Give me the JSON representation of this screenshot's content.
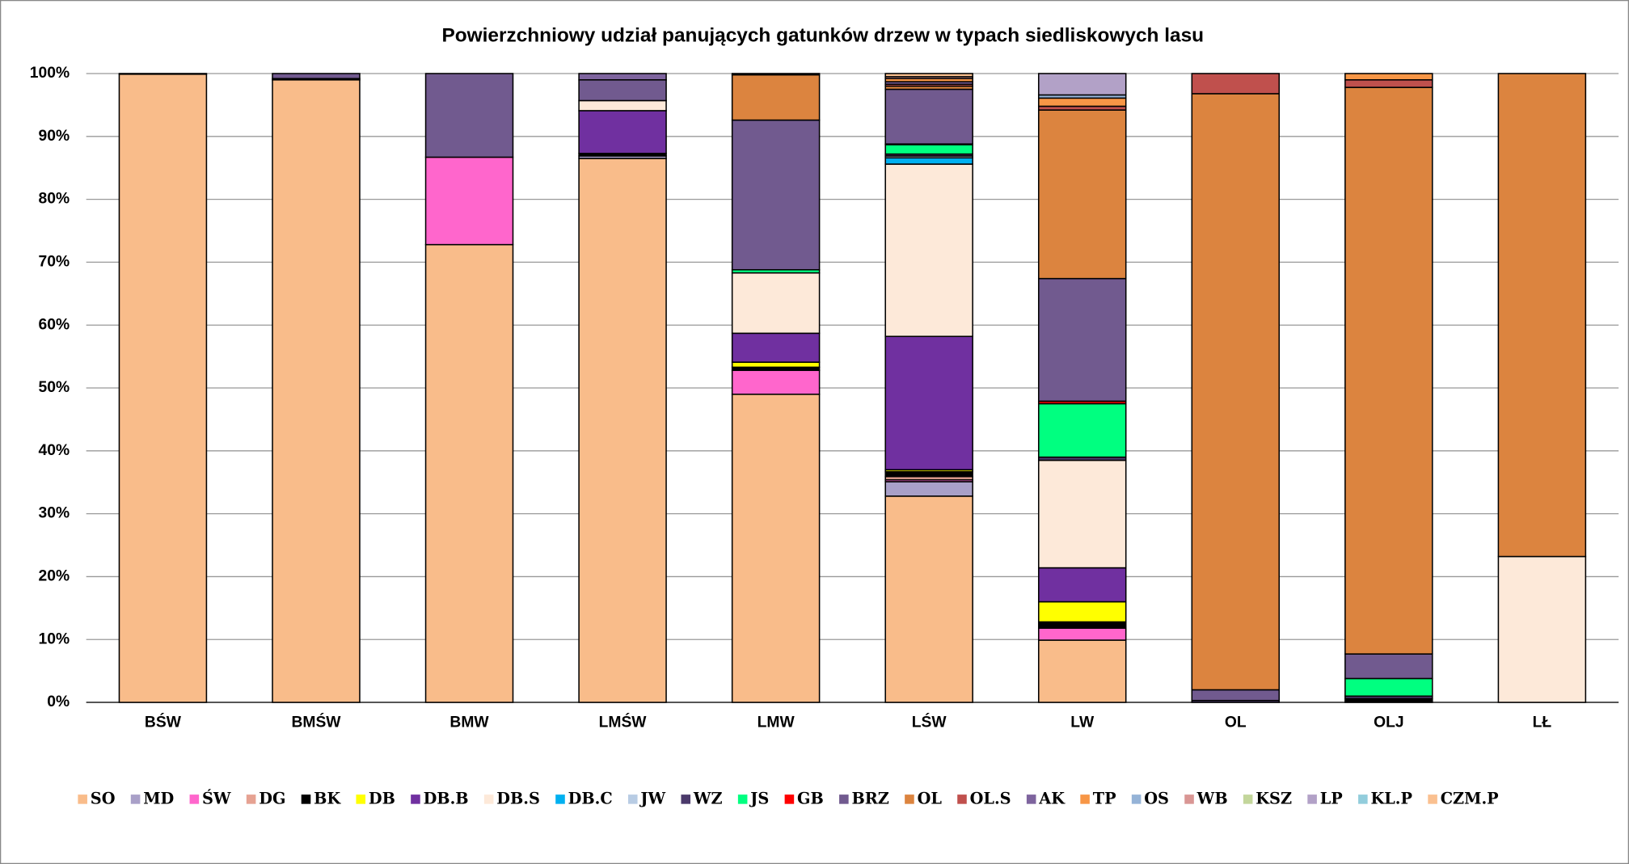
{
  "chart_data": {
    "type": "stacked_bar",
    "title": "Powierzchniowy udział panujących gatunków drzew w typach siedliskowych lasu",
    "categories": [
      "BŚW",
      "BMŚW",
      "BMW",
      "LMŚW",
      "LMW",
      "LŚW",
      "LW",
      "OL",
      "OLJ",
      "LŁ"
    ],
    "ylim": [
      0,
      100
    ],
    "yticks": [
      {
        "value": 0,
        "label": "0%"
      },
      {
        "value": 10,
        "label": "10%"
      },
      {
        "value": 20,
        "label": "20%"
      },
      {
        "value": 30,
        "label": "30%"
      },
      {
        "value": 40,
        "label": "40%"
      },
      {
        "value": 50,
        "label": "50%"
      },
      {
        "value": 60,
        "label": "60%"
      },
      {
        "value": 70,
        "label": "70%"
      },
      {
        "value": 80,
        "label": "80%"
      },
      {
        "value": 90,
        "label": "90%"
      },
      {
        "value": 100,
        "label": "100%"
      }
    ],
    "grid": true,
    "legend": "bottom",
    "series": [
      {
        "name": "SO",
        "color": "#f9bc8a",
        "values": [
          99.9,
          99.0,
          72.8,
          86.5,
          49.0,
          32.8,
          9.9,
          0,
          0,
          0
        ]
      },
      {
        "name": "MD",
        "color": "#a9a0c8",
        "values": [
          0,
          0,
          0,
          0.4,
          0,
          2.3,
          0,
          0,
          0,
          0
        ]
      },
      {
        "name": "ŚW",
        "color": "#ff66cc",
        "values": [
          0,
          0,
          13.9,
          0,
          3.8,
          0.3,
          1.9,
          0,
          0,
          0
        ]
      },
      {
        "name": "DG",
        "color": "#e6a292",
        "values": [
          0,
          0,
          0,
          0,
          0,
          0.5,
          0,
          0,
          0,
          0
        ]
      },
      {
        "name": "BK",
        "color": "#000000",
        "values": [
          0,
          0.2,
          0,
          0.4,
          0.5,
          0.8,
          1.0,
          0,
          0.6,
          0
        ]
      },
      {
        "name": "DB",
        "color": "#ffff00",
        "values": [
          0,
          0,
          0,
          0,
          0.8,
          0.3,
          3.2,
          0,
          0,
          0
        ]
      },
      {
        "name": "DB.B",
        "color": "#7030a0",
        "values": [
          0,
          0,
          0,
          6.8,
          4.6,
          21.2,
          5.4,
          0,
          0,
          0
        ]
      },
      {
        "name": "DB.S",
        "color": "#fde9d9",
        "values": [
          0,
          0,
          0,
          1.6,
          9.6,
          27.4,
          17.1,
          0,
          0,
          23.2
        ]
      },
      {
        "name": "DB.C",
        "color": "#00b0f0",
        "values": [
          0,
          0,
          0,
          0,
          0,
          1.0,
          0,
          0,
          0,
          0
        ]
      },
      {
        "name": "JW",
        "color": "#b8cce4",
        "values": [
          0,
          0,
          0,
          0,
          0,
          0.3,
          0,
          0,
          0,
          0
        ]
      },
      {
        "name": "WZ",
        "color": "#4b3a6b",
        "values": [
          0,
          0,
          0,
          0,
          0,
          0.3,
          0.5,
          0.3,
          0.4,
          0
        ]
      },
      {
        "name": "JS",
        "color": "#00ff80",
        "values": [
          0,
          0,
          0,
          0,
          0.5,
          1.5,
          8.5,
          0,
          2.8,
          0
        ]
      },
      {
        "name": "GB",
        "color": "#ff0000",
        "values": [
          0,
          0,
          0,
          0,
          0,
          0.1,
          0.4,
          0,
          0,
          0
        ]
      },
      {
        "name": "BRZ",
        "color": "#715a8f",
        "values": [
          0.1,
          0.8,
          13.3,
          3.3,
          23.8,
          8.7,
          19.5,
          1.7,
          3.9,
          0
        ]
      },
      {
        "name": "OL",
        "color": "#dc843f",
        "values": [
          0,
          0,
          0,
          0,
          7.2,
          0.5,
          26.8,
          94.8,
          90.1,
          76.8
        ]
      },
      {
        "name": "OL.S",
        "color": "#c0504d",
        "values": [
          0,
          0,
          0,
          0,
          0.2,
          0.3,
          0.6,
          3.2,
          1.2,
          0
        ]
      },
      {
        "name": "AK",
        "color": "#7e649e",
        "values": [
          0,
          0,
          0,
          1.0,
          0,
          0.4,
          0,
          0,
          0,
          0
        ]
      },
      {
        "name": "TP",
        "color": "#f79646",
        "values": [
          0,
          0,
          0,
          0,
          0,
          0.5,
          1.3,
          0,
          1.0,
          0
        ]
      },
      {
        "name": "OS",
        "color": "#95b3d7",
        "values": [
          0,
          0,
          0,
          0,
          0,
          0,
          0.5,
          0,
          0,
          0
        ]
      },
      {
        "name": "WB",
        "color": "#d99694",
        "values": [
          0,
          0,
          0,
          0,
          0,
          0.3,
          0,
          0,
          0,
          0
        ]
      },
      {
        "name": "KSZ",
        "color": "#c3d69b",
        "values": [
          0,
          0,
          0,
          0,
          0,
          0,
          0,
          0,
          0,
          0
        ]
      },
      {
        "name": "LP",
        "color": "#b2a1c7",
        "values": [
          0,
          0,
          0,
          0,
          0,
          0,
          3.4,
          0,
          0,
          0
        ]
      },
      {
        "name": "KL.P",
        "color": "#92cddc",
        "values": [
          0,
          0,
          0,
          0,
          0,
          0,
          0,
          0,
          0,
          0
        ]
      },
      {
        "name": "CZM.P",
        "color": "#fac090",
        "values": [
          0,
          0,
          0,
          0,
          0,
          0.5,
          0,
          0,
          0,
          0
        ]
      }
    ]
  }
}
